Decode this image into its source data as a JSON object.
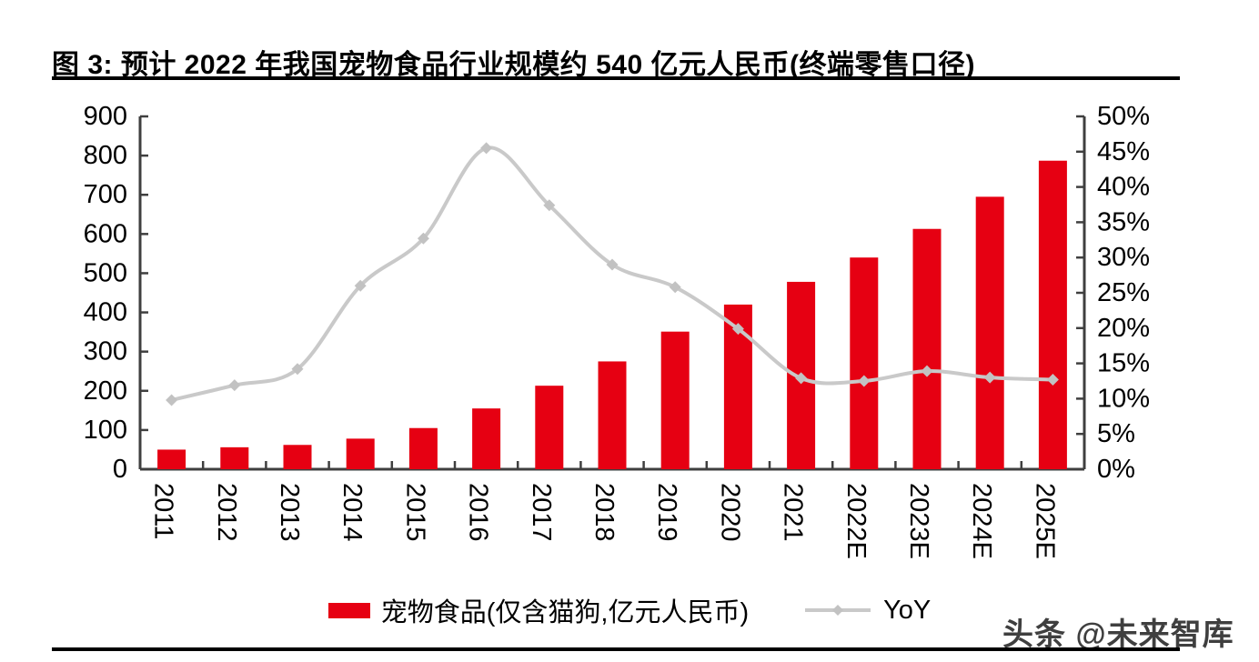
{
  "figure": {
    "title": "图 3: 预计 2022 年我国宠物食品行业规模约 540 亿元人民币(终端零售口径)",
    "watermark": "头条 @未来智库"
  },
  "legend": {
    "bars_label": "宠物食品(仅含猫狗,亿元人民币)",
    "line_label": "YoY"
  },
  "colors": {
    "bar": "#e60012",
    "line": "#c9c9c9",
    "marker": "#c2c2c2",
    "axis": "#3f3f3f",
    "tick_text": "#000000",
    "rule": "#000000"
  },
  "chart_data": {
    "type": "bar+line combo",
    "title": "预计 2022 年我国宠物食品行业规模约 540 亿元人民币(终端零售口径)",
    "categories": [
      "2011",
      "2012",
      "2013",
      "2014",
      "2015",
      "2016",
      "2017",
      "2018",
      "2019",
      "2020",
      "2021",
      "2022E",
      "2023E",
      "2024E",
      "2025E"
    ],
    "series": [
      {
        "name": "宠物食品(仅含猫狗,亿元人民币)",
        "type": "bar",
        "y_axis": "left",
        "values": [
          50,
          56,
          62,
          78,
          105,
          155,
          213,
          275,
          351,
          420,
          478,
          540,
          613,
          695,
          787
        ]
      },
      {
        "name": "YoY",
        "type": "line",
        "y_axis": "right",
        "unit": "%",
        "values": [
          9.8,
          11.9,
          14.2,
          26.0,
          32.7,
          45.5,
          37.4,
          29.0,
          25.8,
          19.9,
          12.9,
          12.5,
          13.9,
          13.0,
          12.7
        ]
      }
    ],
    "left_axis": {
      "min": 0,
      "max": 900,
      "step": 100,
      "tick_labels": [
        "0",
        "100",
        "200",
        "300",
        "400",
        "500",
        "600",
        "700",
        "800",
        "900"
      ]
    },
    "right_axis": {
      "min": 0,
      "max": 50,
      "step": 5,
      "tick_labels": [
        "0%",
        "5%",
        "10%",
        "15%",
        "20%",
        "25%",
        "30%",
        "35%",
        "40%",
        "45%",
        "50%"
      ]
    },
    "x_axis": {
      "tick_label_rotation_deg": 90,
      "ticks_between_categories": true
    },
    "grid": false,
    "legend_position": "bottom",
    "line_smooth": true
  }
}
